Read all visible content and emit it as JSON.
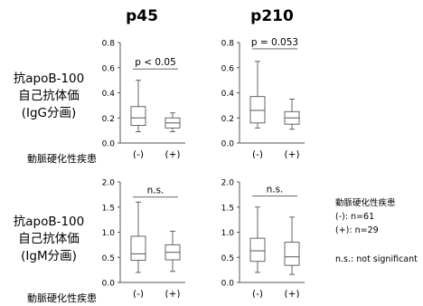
{
  "column_titles": [
    "p45",
    "p210"
  ],
  "row_labels": [
    [
      "抗apoB-100",
      "自己抗体価",
      "(IgG分画)"
    ],
    [
      "抗apoB-100",
      "自己抗体価",
      "(IgM分画)"
    ]
  ],
  "x_axis_title": "動脈硬化性疾患",
  "legend": {
    "title": "動脈硬化性疾患",
    "lines": [
      "(-): n=61",
      "(+): n=29"
    ],
    "note": "n.s.: not significant"
  },
  "chart_data": [
    {
      "type": "boxplot",
      "title": "p45",
      "ylabel": "抗apoB-100 自己抗体価 (IgG分画)",
      "xlabel": "動脈硬化性疾患",
      "categories": [
        "(-)",
        "(+)"
      ],
      "ylim": [
        0,
        0.8
      ],
      "yticks": [
        "0.0",
        "0.2",
        "0.4",
        "0.6",
        "0.8"
      ],
      "boxes": [
        {
          "whisker_low": 0.09,
          "q1": 0.14,
          "median": 0.2,
          "q3": 0.29,
          "whisker_high": 0.5
        },
        {
          "whisker_low": 0.09,
          "q1": 0.12,
          "median": 0.16,
          "q3": 0.2,
          "whisker_high": 0.24
        }
      ],
      "annotation": "p < 0.05",
      "annotation_y": 0.59
    },
    {
      "type": "boxplot",
      "title": "p210",
      "ylabel": "抗apoB-100 自己抗体価 (IgG分画)",
      "xlabel": "動脈硬化性疾患",
      "categories": [
        "(-)",
        "(+)"
      ],
      "ylim": [
        0,
        0.8
      ],
      "yticks": [
        "0.0",
        "0.2",
        "0.4",
        "0.6",
        "0.8"
      ],
      "boxes": [
        {
          "whisker_low": 0.12,
          "q1": 0.16,
          "median": 0.26,
          "q3": 0.37,
          "whisker_high": 0.65
        },
        {
          "whisker_low": 0.11,
          "q1": 0.15,
          "median": 0.2,
          "q3": 0.25,
          "whisker_high": 0.35
        }
      ],
      "annotation": "p = 0.053",
      "annotation_y": 0.75
    },
    {
      "type": "boxplot",
      "ylabel": "抗apoB-100 自己抗体価 (IgM分画)",
      "xlabel": "動脈硬化性疾患",
      "categories": [
        "(-)",
        "(+)"
      ],
      "ylim": [
        0,
        2.0
      ],
      "yticks": [
        "0.0",
        "0.5",
        "1.0",
        "1.5",
        "2.0"
      ],
      "boxes": [
        {
          "whisker_low": 0.2,
          "q1": 0.44,
          "median": 0.57,
          "q3": 0.92,
          "whisker_high": 1.6
        },
        {
          "whisker_low": 0.22,
          "q1": 0.45,
          "median": 0.6,
          "q3": 0.75,
          "whisker_high": 1.02
        }
      ],
      "annotation": "n.s.",
      "annotation_y": 1.7
    },
    {
      "type": "boxplot",
      "ylabel": "抗apoB-100 自己抗体価 (IgM分画)",
      "xlabel": "動脈硬化性疾患",
      "categories": [
        "(-)",
        "(+)"
      ],
      "ylim": [
        0,
        2.0
      ],
      "yticks": [
        "0.0",
        "0.5",
        "1.0",
        "1.5",
        "2.0"
      ],
      "boxes": [
        {
          "whisker_low": 0.2,
          "q1": 0.42,
          "median": 0.63,
          "q3": 0.88,
          "whisker_high": 1.5
        },
        {
          "whisker_low": 0.16,
          "q1": 0.34,
          "median": 0.51,
          "q3": 0.8,
          "whisker_high": 1.3
        }
      ],
      "annotation": "n.s.",
      "annotation_y": 1.72
    }
  ]
}
